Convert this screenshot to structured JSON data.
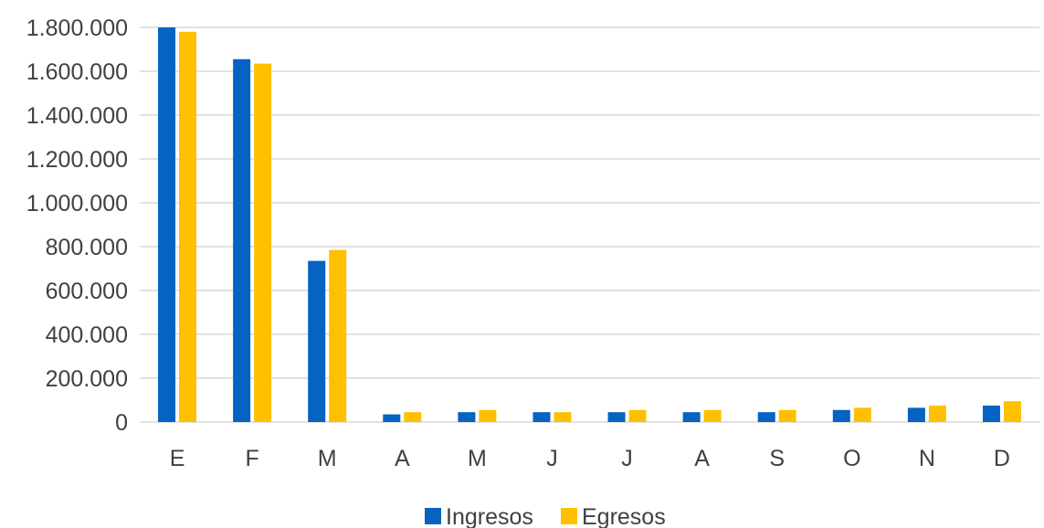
{
  "chart_data": {
    "type": "bar",
    "categories": [
      "E",
      "F",
      "M",
      "A",
      "M",
      "J",
      "J",
      "A",
      "S",
      "O",
      "N",
      "D"
    ],
    "series": [
      {
        "name": "Ingresos",
        "color": "#0563C1",
        "values": [
          1800000,
          1655000,
          735000,
          35000,
          45000,
          45000,
          45000,
          45000,
          45000,
          55000,
          65000,
          75000
        ]
      },
      {
        "name": "Egresos",
        "color": "#FFC000",
        "values": [
          1780000,
          1635000,
          785000,
          45000,
          55000,
          45000,
          55000,
          55000,
          55000,
          65000,
          75000,
          95000
        ]
      }
    ],
    "ylim": [
      0,
      1800000
    ],
    "yticks": [
      0,
      200000,
      400000,
      600000,
      800000,
      1000000,
      1200000,
      1400000,
      1600000,
      1800000
    ],
    "ytick_labels": [
      "0",
      "200.000",
      "400.000",
      "600.000",
      "800.000",
      "1.000.000",
      "1.200.000",
      "1.400.000",
      "1.600.000",
      "1.800.000"
    ],
    "grid": true,
    "legend_position": "bottom"
  }
}
